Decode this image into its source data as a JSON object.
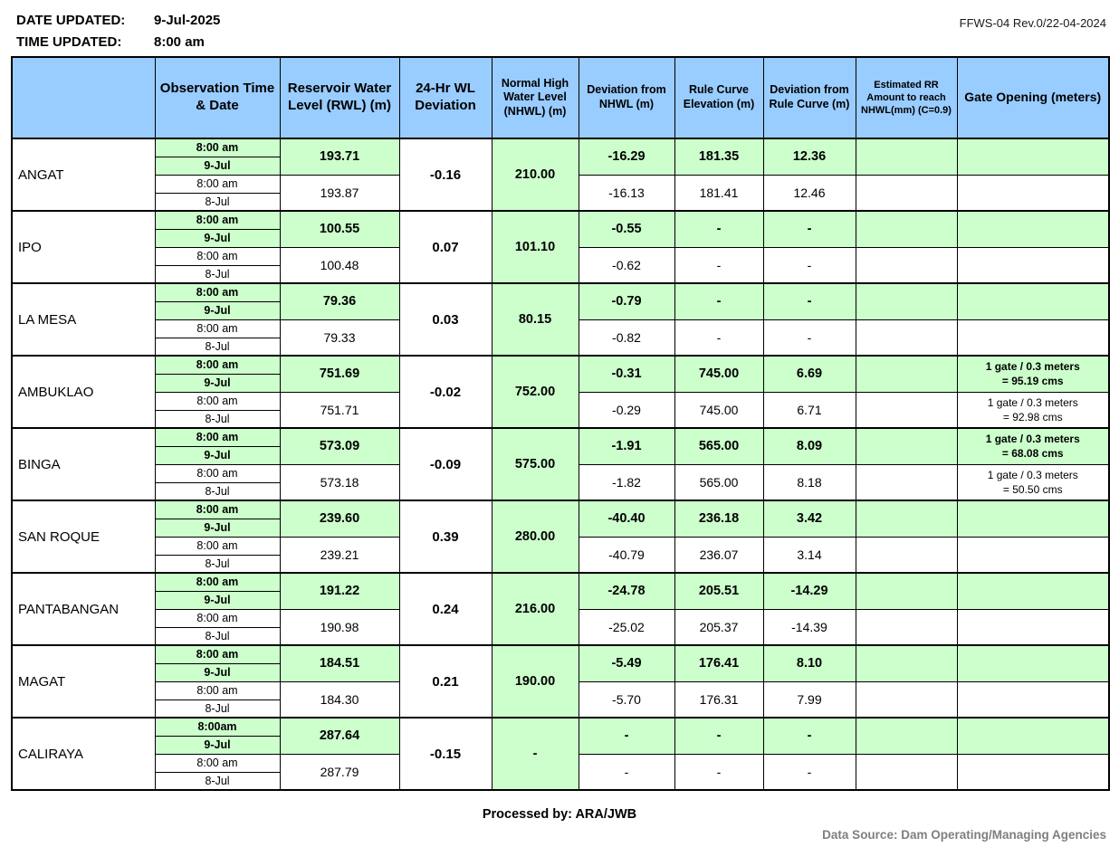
{
  "header": {
    "date_updated_label": "DATE UPDATED:",
    "date_updated_value": "9-Jul-2025",
    "time_updated_label": "TIME UPDATED:",
    "time_updated_value": "8:00 am",
    "form_reference": "FFWS-04 Rev.0/22-04-2024"
  },
  "colors": {
    "header_bg": "#99CCFF",
    "current_row_bg": "#CCFFCC",
    "border": "#000000",
    "data_source_text": "#7F7F7F"
  },
  "table": {
    "columns": [
      "",
      "Observation Time & Date",
      "Reservoir Water Level (RWL) (m)",
      "24-Hr WL Deviation",
      "Normal High Water Level (NHWL) (m)",
      "Deviation from NHWL (m)",
      "Rule Curve Elevation (m)",
      "Deviation from Rule Curve (m)",
      "Estimated RR Amount to reach NHWL(mm) (C=0.9)",
      "Gate Opening (meters)"
    ],
    "dams": [
      {
        "name": "ANGAT",
        "wl_deviation_24hr": "-0.16",
        "nhwl": "210.00",
        "current": {
          "time": "8:00 am",
          "date": "9-Jul",
          "rwl": "193.71",
          "dev_nhwl": "-16.29",
          "rule_curve": "181.35",
          "dev_rule_curve": "12.36",
          "est_rr": "",
          "gate": ""
        },
        "previous": {
          "time": "8:00 am",
          "date": "8-Jul",
          "rwl": "193.87",
          "dev_nhwl": "-16.13",
          "rule_curve": "181.41",
          "dev_rule_curve": "12.46",
          "est_rr": "",
          "gate": ""
        }
      },
      {
        "name": "IPO",
        "wl_deviation_24hr": "0.07",
        "nhwl": "101.10",
        "current": {
          "time": "8:00 am",
          "date": "9-Jul",
          "rwl": "100.55",
          "dev_nhwl": "-0.55",
          "rule_curve": "-",
          "dev_rule_curve": "-",
          "est_rr": "",
          "gate": ""
        },
        "previous": {
          "time": "8:00 am",
          "date": "8-Jul",
          "rwl": "100.48",
          "dev_nhwl": "-0.62",
          "rule_curve": "-",
          "dev_rule_curve": "-",
          "est_rr": "",
          "gate": ""
        }
      },
      {
        "name": "LA MESA",
        "wl_deviation_24hr": "0.03",
        "nhwl": "80.15",
        "current": {
          "time": "8:00 am",
          "date": "9-Jul",
          "rwl": "79.36",
          "dev_nhwl": "-0.79",
          "rule_curve": "-",
          "dev_rule_curve": "-",
          "est_rr": "",
          "gate": ""
        },
        "previous": {
          "time": "8:00 am",
          "date": "8-Jul",
          "rwl": "79.33",
          "dev_nhwl": "-0.82",
          "rule_curve": "-",
          "dev_rule_curve": "-",
          "est_rr": "",
          "gate": ""
        }
      },
      {
        "name": "AMBUKLAO",
        "wl_deviation_24hr": "-0.02",
        "nhwl": "752.00",
        "current": {
          "time": "8:00 am",
          "date": "9-Jul",
          "rwl": "751.69",
          "dev_nhwl": "-0.31",
          "rule_curve": "745.00",
          "dev_rule_curve": "6.69",
          "est_rr": "",
          "gate": "1 gate / 0.3 meters\n= 95.19 cms"
        },
        "previous": {
          "time": "8:00 am",
          "date": "8-Jul",
          "rwl": "751.71",
          "dev_nhwl": "-0.29",
          "rule_curve": "745.00",
          "dev_rule_curve": "6.71",
          "est_rr": "",
          "gate": "1 gate / 0.3 meters\n= 92.98 cms"
        }
      },
      {
        "name": "BINGA",
        "wl_deviation_24hr": "-0.09",
        "nhwl": "575.00",
        "current": {
          "time": "8:00 am",
          "date": "9-Jul",
          "rwl": "573.09",
          "dev_nhwl": "-1.91",
          "rule_curve": "565.00",
          "dev_rule_curve": "8.09",
          "est_rr": "",
          "gate": "1 gate / 0.3 meters\n= 68.08 cms"
        },
        "previous": {
          "time": "8:00 am",
          "date": "8-Jul",
          "rwl": "573.18",
          "dev_nhwl": "-1.82",
          "rule_curve": "565.00",
          "dev_rule_curve": "8.18",
          "est_rr": "",
          "gate": "1 gate / 0.3 meters\n= 50.50 cms"
        }
      },
      {
        "name": "SAN ROQUE",
        "wl_deviation_24hr": "0.39",
        "nhwl": "280.00",
        "current": {
          "time": "8:00 am",
          "date": "9-Jul",
          "rwl": "239.60",
          "dev_nhwl": "-40.40",
          "rule_curve": "236.18",
          "dev_rule_curve": "3.42",
          "est_rr": "",
          "gate": ""
        },
        "previous": {
          "time": "8:00 am",
          "date": "8-Jul",
          "rwl": "239.21",
          "dev_nhwl": "-40.79",
          "rule_curve": "236.07",
          "dev_rule_curve": "3.14",
          "est_rr": "",
          "gate": ""
        }
      },
      {
        "name": "PANTABANGAN",
        "wl_deviation_24hr": "0.24",
        "nhwl": "216.00",
        "current": {
          "time": "8:00 am",
          "date": "9-Jul",
          "rwl": "191.22",
          "dev_nhwl": "-24.78",
          "rule_curve": "205.51",
          "dev_rule_curve": "-14.29",
          "est_rr": "",
          "gate": ""
        },
        "previous": {
          "time": "8:00 am",
          "date": "8-Jul",
          "rwl": "190.98",
          "dev_nhwl": "-25.02",
          "rule_curve": "205.37",
          "dev_rule_curve": "-14.39",
          "est_rr": "",
          "gate": ""
        }
      },
      {
        "name": "MAGAT",
        "wl_deviation_24hr": "0.21",
        "nhwl": "190.00",
        "current": {
          "time": "8:00 am",
          "date": "9-Jul",
          "rwl": "184.51",
          "dev_nhwl": "-5.49",
          "rule_curve": "176.41",
          "dev_rule_curve": "8.10",
          "est_rr": "",
          "gate": ""
        },
        "previous": {
          "time": "8:00 am",
          "date": "8-Jul",
          "rwl": "184.30",
          "dev_nhwl": "-5.70",
          "rule_curve": "176.31",
          "dev_rule_curve": "7.99",
          "est_rr": "",
          "gate": ""
        }
      },
      {
        "name": "CALIRAYA",
        "wl_deviation_24hr": "-0.15",
        "nhwl": "-",
        "current": {
          "time": "8:00am",
          "date": "9-Jul",
          "rwl": "287.64",
          "dev_nhwl": "-",
          "rule_curve": "-",
          "dev_rule_curve": "-",
          "est_rr": "",
          "gate": ""
        },
        "previous": {
          "time": "8:00 am",
          "date": "8-Jul",
          "rwl": "287.79",
          "dev_nhwl": "-",
          "rule_curve": "-",
          "dev_rule_curve": "-",
          "est_rr": "",
          "gate": ""
        }
      }
    ]
  },
  "footer": {
    "processed_by": "Processed by: ARA/JWB",
    "data_source": "Data Source: Dam Operating/Managing Agencies"
  }
}
